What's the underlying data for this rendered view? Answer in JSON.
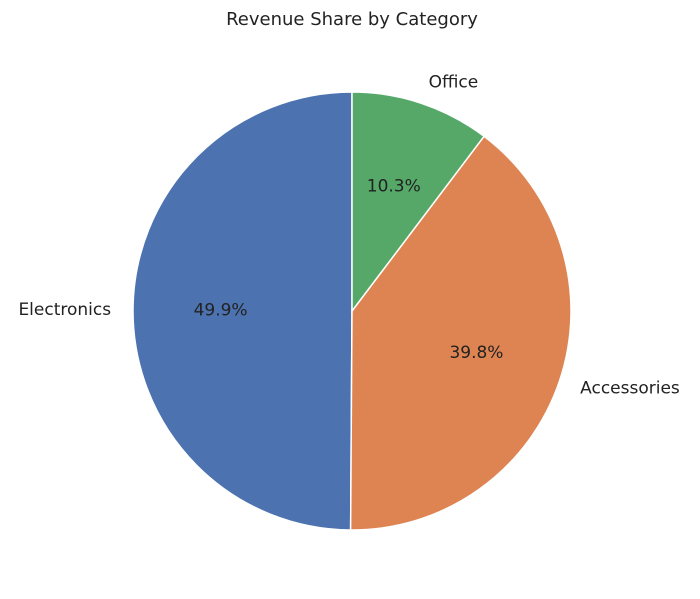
{
  "chart_data": {
    "type": "pie",
    "title": "Revenue Share by Category",
    "categories": [
      "Electronics",
      "Accessories",
      "Office"
    ],
    "values": [
      49.9,
      39.8,
      10.3
    ],
    "value_labels": [
      "49.9%",
      "39.8%",
      "10.3%"
    ],
    "colors": [
      "#4c72b0",
      "#dd8452",
      "#55a868"
    ]
  }
}
